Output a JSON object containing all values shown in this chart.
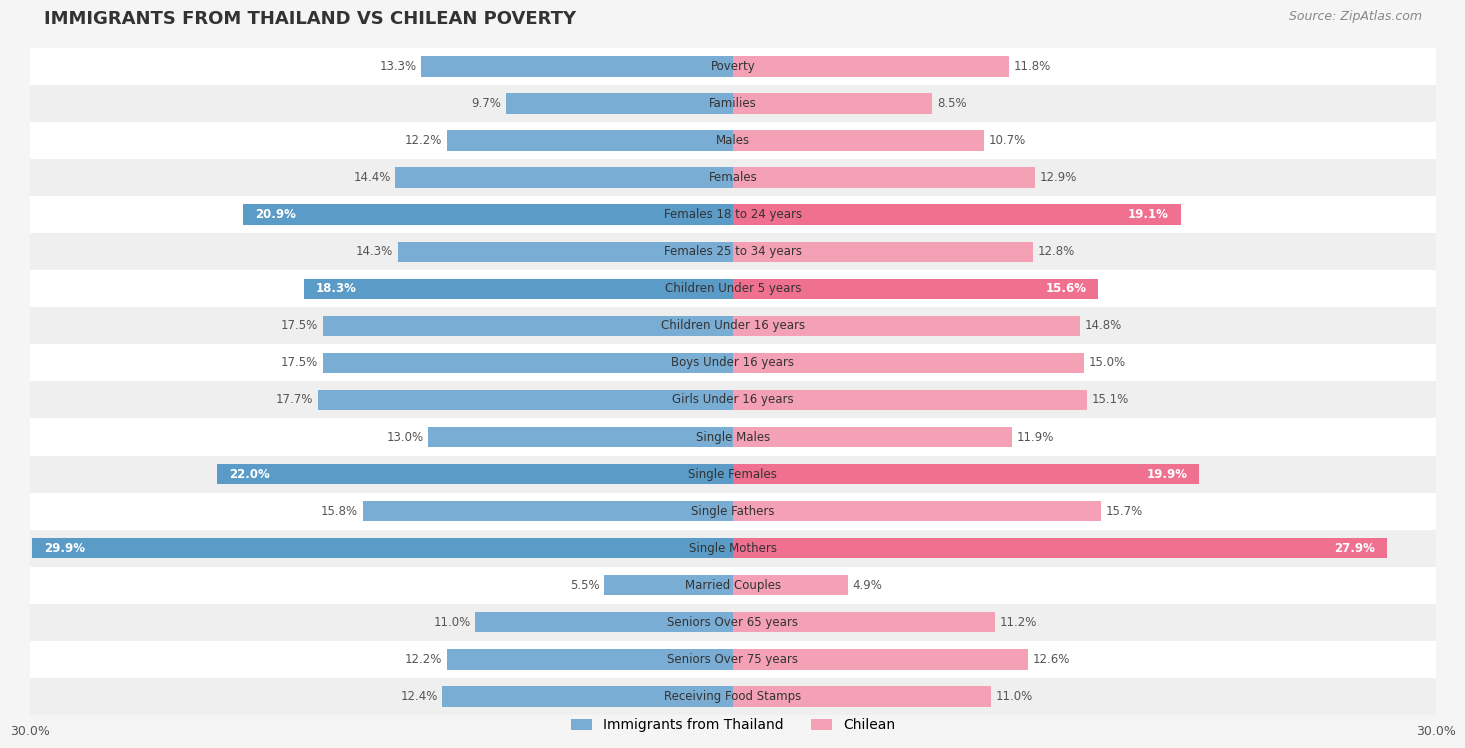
{
  "title": "IMMIGRANTS FROM THAILAND VS CHILEAN POVERTY",
  "source": "Source: ZipAtlas.com",
  "categories": [
    "Poverty",
    "Families",
    "Males",
    "Females",
    "Females 18 to 24 years",
    "Females 25 to 34 years",
    "Children Under 5 years",
    "Children Under 16 years",
    "Boys Under 16 years",
    "Girls Under 16 years",
    "Single Males",
    "Single Females",
    "Single Fathers",
    "Single Mothers",
    "Married Couples",
    "Seniors Over 65 years",
    "Seniors Over 75 years",
    "Receiving Food Stamps"
  ],
  "thailand_values": [
    13.3,
    9.7,
    12.2,
    14.4,
    20.9,
    14.3,
    18.3,
    17.5,
    17.5,
    17.7,
    13.0,
    22.0,
    15.8,
    29.9,
    5.5,
    11.0,
    12.2,
    12.4
  ],
  "chilean_values": [
    11.8,
    8.5,
    10.7,
    12.9,
    19.1,
    12.8,
    15.6,
    14.8,
    15.0,
    15.1,
    11.9,
    19.9,
    15.7,
    27.9,
    4.9,
    11.2,
    12.6,
    11.0
  ],
  "thailand_color": "#7aadd4",
  "chilean_color": "#f4a0b5",
  "thailand_highlight_color": "#5b9bc8",
  "chilean_highlight_color": "#f07090",
  "highlight_indices": [
    4,
    6,
    11,
    13
  ],
  "background_color": "#f5f5f5",
  "bar_background": "#ffffff",
  "xlim": 30.0,
  "bar_height": 0.55,
  "legend_labels": [
    "Immigrants from Thailand",
    "Chilean"
  ],
  "x_tick_label": "30.0%"
}
